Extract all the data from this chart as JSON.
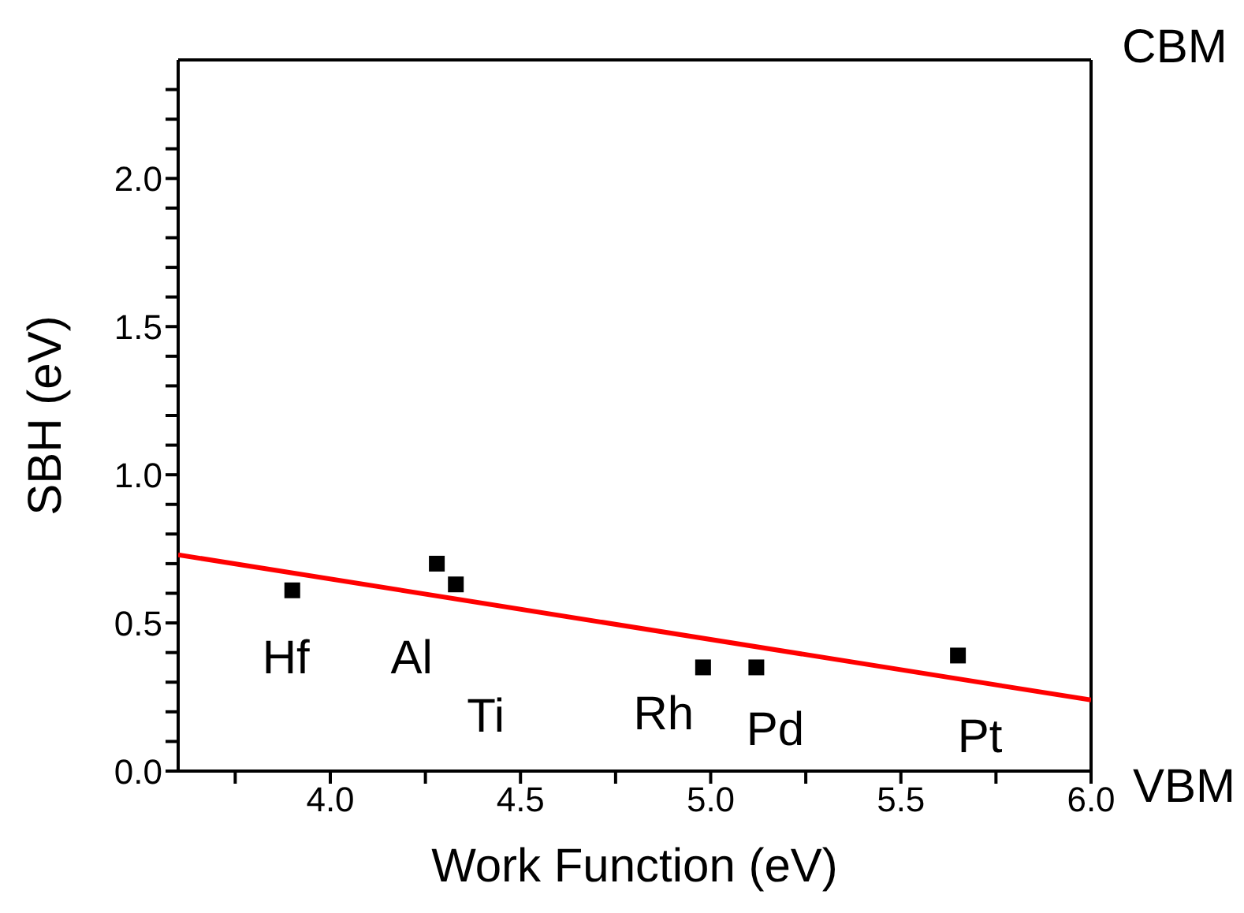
{
  "chart_data": {
    "type": "scatter",
    "xlabel": "Work Function (eV)",
    "ylabel": "SBH (eV)",
    "xlim": [
      3.6,
      6.0
    ],
    "ylim": [
      0,
      2.4
    ],
    "xticks": [
      {
        "value": 3.75,
        "label": null
      },
      {
        "value": 4.0,
        "label": "4.0"
      },
      {
        "value": 4.25,
        "label": null
      },
      {
        "value": 4.5,
        "label": "4.5"
      },
      {
        "value": 4.75,
        "label": null
      },
      {
        "value": 5.0,
        "label": "5.0"
      },
      {
        "value": 5.25,
        "label": null
      },
      {
        "value": 5.5,
        "label": "5.5"
      },
      {
        "value": 5.75,
        "label": null
      },
      {
        "value": 6.0,
        "label": "6.0"
      }
    ],
    "yticks": [
      {
        "value": 0,
        "label": "0.0"
      },
      {
        "value": 0.1,
        "label": null
      },
      {
        "value": 0.2,
        "label": null
      },
      {
        "value": 0.3,
        "label": null
      },
      {
        "value": 0.4,
        "label": null
      },
      {
        "value": 0.5,
        "label": "0.5"
      },
      {
        "value": 0.6,
        "label": null
      },
      {
        "value": 0.7,
        "label": null
      },
      {
        "value": 0.8,
        "label": null
      },
      {
        "value": 0.9,
        "label": null
      },
      {
        "value": 1.0,
        "label": "1.0"
      },
      {
        "value": 1.1,
        "label": null
      },
      {
        "value": 1.2,
        "label": null
      },
      {
        "value": 1.3,
        "label": null
      },
      {
        "value": 1.4,
        "label": null
      },
      {
        "value": 1.5,
        "label": "1.5"
      },
      {
        "value": 1.6,
        "label": null
      },
      {
        "value": 1.7,
        "label": null
      },
      {
        "value": 1.8,
        "label": null
      },
      {
        "value": 1.9,
        "label": null
      },
      {
        "value": 2.0,
        "label": "2.0"
      },
      {
        "value": 2.1,
        "label": null
      },
      {
        "value": 2.2,
        "label": null
      },
      {
        "value": 2.3,
        "label": null
      }
    ],
    "series": [
      {
        "marker": "square",
        "color": "#000000",
        "x": [
          3.9,
          4.28,
          4.33,
          4.98,
          5.12,
          5.65
        ],
        "values": [
          0.61,
          0.7,
          0.63,
          0.35,
          0.35,
          0.39
        ]
      },
      {
        "type": "line",
        "marker": "none",
        "color": "#ff0000",
        "x": [
          3.6,
          6.0
        ],
        "values": [
          0.73,
          0.24
        ]
      }
    ],
    "annotations": [
      {
        "text": "Hf",
        "x": 3.9,
        "y": 0.61
      },
      {
        "text": "Al",
        "x": 4.28,
        "y": 0.7
      },
      {
        "text": "Ti",
        "x": 4.33,
        "y": 0.63
      },
      {
        "text": "Rh",
        "x": 4.98,
        "y": 0.35
      },
      {
        "text": "Pd",
        "x": 5.12,
        "y": 0.35
      },
      {
        "text": "Pt",
        "x": 5.65,
        "y": 0.39
      },
      "CBM",
      "VBM"
    ]
  }
}
